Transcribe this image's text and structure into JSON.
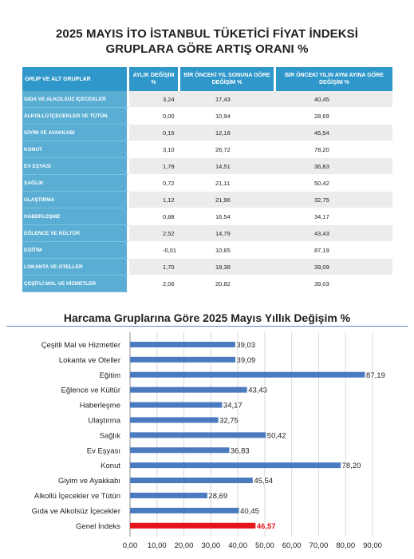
{
  "header": {
    "title_line1": "2025 MAYIS İTO İSTANBUL TÜKETİCİ FİYAT İNDEKSİ",
    "title_line2": "GRUPLARA GÖRE ARTIŞ ORANI %"
  },
  "table": {
    "columns": [
      "GRUP VE ALT GRUPLAR",
      "AYLIK DEĞİŞİM %",
      "BİR ÖNCEKİ YIL SONUNA GÖRE DEĞİŞİM %",
      "BİR ÖNCEKİ YILIN AYNI AYINA GÖRE DEĞİŞİM %"
    ],
    "rows": [
      {
        "group": "GIDA VE ALKOLSÜZ İÇECEKLER",
        "monthly": "3,24",
        "ytd": "17,43",
        "yoy": "40,45"
      },
      {
        "group": "ALKOLLÜ İÇECEKLER VE TÜTÜN",
        "monthly": "0,00",
        "ytd": "10,94",
        "yoy": "28,69"
      },
      {
        "group": "GİYİM VE AYAKKABI",
        "monthly": "0,15",
        "ytd": "12,18",
        "yoy": "45,54"
      },
      {
        "group": "KONUT",
        "monthly": "3,10",
        "ytd": "26,72",
        "yoy": "78,20"
      },
      {
        "group": "EV EŞYASI",
        "monthly": "1,79",
        "ytd": "14,51",
        "yoy": "36,83"
      },
      {
        "group": "SAĞLIK",
        "monthly": "0,72",
        "ytd": "21,11",
        "yoy": "50,42"
      },
      {
        "group": "ULAŞTIRMA",
        "monthly": "1,12",
        "ytd": "21,96",
        "yoy": "32,75"
      },
      {
        "group": "HABERLEŞME",
        "monthly": "0,88",
        "ytd": "16,54",
        "yoy": "34,17"
      },
      {
        "group": "EĞLENCE VE KÜLTÜR",
        "monthly": "2,52",
        "ytd": "14,79",
        "yoy": "43,43"
      },
      {
        "group": "EĞİTİM",
        "monthly": "-0,01",
        "ytd": "10,65",
        "yoy": "87,19"
      },
      {
        "group": "LOKANTA VE OTELLER",
        "monthly": "1,70",
        "ytd": "18,38",
        "yoy": "39,09"
      },
      {
        "group": "ÇEŞİTLİ MAL VE HİZMETLER",
        "monthly": "2,06",
        "ytd": "20,82",
        "yoy": "39,03"
      }
    ]
  },
  "chart_data": {
    "type": "bar",
    "orientation": "horizontal",
    "title": "Harcama Gruplarına Göre 2025 Mayıs Yıllık Değişim %",
    "categories": [
      "Çeşitli Mal ve Hizmetler",
      "Lokanta ve Oteller",
      "Eğitim",
      "Eğlence ve Kültür",
      "Haberleşme",
      "Ulaştırma",
      "Sağlık",
      "Ev Eşyası",
      "Konut",
      "Giyim ve Ayakkabı",
      "Alkollü İçecekler ve Tütün",
      "Gıda ve Alkolsüz İçecekler",
      "Genel İndeks"
    ],
    "values": [
      39.03,
      39.09,
      87.19,
      43.43,
      34.17,
      32.75,
      50.42,
      36.83,
      78.2,
      45.54,
      28.69,
      40.45,
      46.57
    ],
    "value_labels": [
      "39,03",
      "39,09",
      "87,19",
      "43,43",
      "34,17",
      "32,75",
      "50,42",
      "36,83",
      "78,20",
      "45,54",
      "28,69",
      "40,45",
      "46,57"
    ],
    "highlight": "Genel İndeks",
    "xlim": [
      0,
      90
    ],
    "xticks": [
      "0,00",
      "10,00",
      "20,00",
      "30,00",
      "40,00",
      "50,00",
      "60,00",
      "70,00",
      "80,00",
      "90,00"
    ],
    "xtick_values": [
      0,
      10,
      20,
      30,
      40,
      50,
      60,
      70,
      80,
      90
    ],
    "grid": true,
    "colors": {
      "bar": "#4a7bbf",
      "highlight": "#e8141c",
      "grid": "#d9d9d9",
      "axis": "#8c8c8c"
    }
  }
}
